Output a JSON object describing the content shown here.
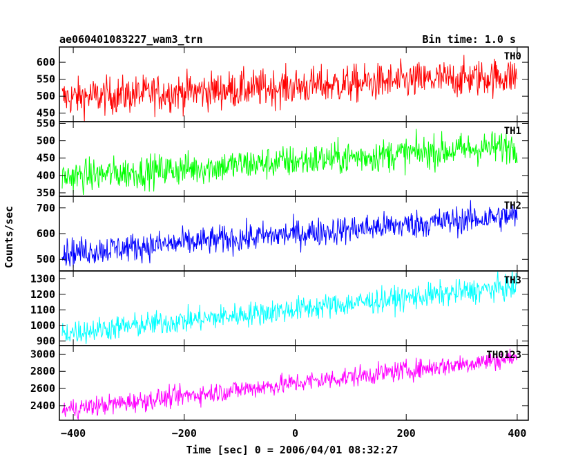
{
  "chart_data": {
    "type": "line",
    "title": "ae060401083227_wam3_trn",
    "bin_time_label": "Bin time: 1.0 s",
    "xlabel": "Time [sec] 0 = 2006/04/01 08:32:27",
    "ylabel": "Counts/sec",
    "xlim": [
      -425,
      420
    ],
    "xticks": [
      -400,
      -200,
      0,
      200,
      400
    ],
    "xtick_labels": [
      "−400",
      "−200",
      "0",
      "200",
      "400"
    ],
    "panels": [
      {
        "name": "TH0",
        "color": "#ff0000",
        "ylim": [
          425,
          645
        ],
        "yticks": [
          450,
          500,
          550,
          600
        ],
        "ytick_labels": [
          "450",
          "500",
          "550",
          "600"
        ],
        "start": 495,
        "end": 560,
        "noise": 28
      },
      {
        "name": "TH1",
        "color": "#00ff00",
        "ylim": [
          340,
          555
        ],
        "yticks": [
          350,
          400,
          450,
          500,
          550
        ],
        "ytick_labels": [
          "350",
          "400",
          "450",
          "500",
          "550"
        ],
        "start": 395,
        "end": 485,
        "noise": 24
      },
      {
        "name": "TH2",
        "color": "#0000ff",
        "ylim": [
          455,
          745
        ],
        "yticks": [
          500,
          600,
          700
        ],
        "ytick_labels": [
          "500",
          "600",
          "700"
        ],
        "start": 525,
        "end": 670,
        "noise": 28
      },
      {
        "name": "TH3",
        "color": "#00ffff",
        "ylim": [
          870,
          1350
        ],
        "yticks": [
          900,
          1000,
          1100,
          1200,
          1300
        ],
        "ytick_labels": [
          "900",
          "1000",
          "1100",
          "1200",
          "1300"
        ],
        "start": 950,
        "end": 1250,
        "noise": 40
      },
      {
        "name": "TH0123",
        "color": "#ff00ff",
        "ylim": [
          2230,
          3100
        ],
        "yticks": [
          2400,
          2600,
          2800,
          3000
        ],
        "ytick_labels": [
          "2400",
          "2600",
          "2800",
          "3000"
        ],
        "start": 2350,
        "end": 2960,
        "noise": 60
      }
    ],
    "x_range_data": [
      -420,
      400
    ],
    "bin_sec": 1.0,
    "grid": false
  }
}
